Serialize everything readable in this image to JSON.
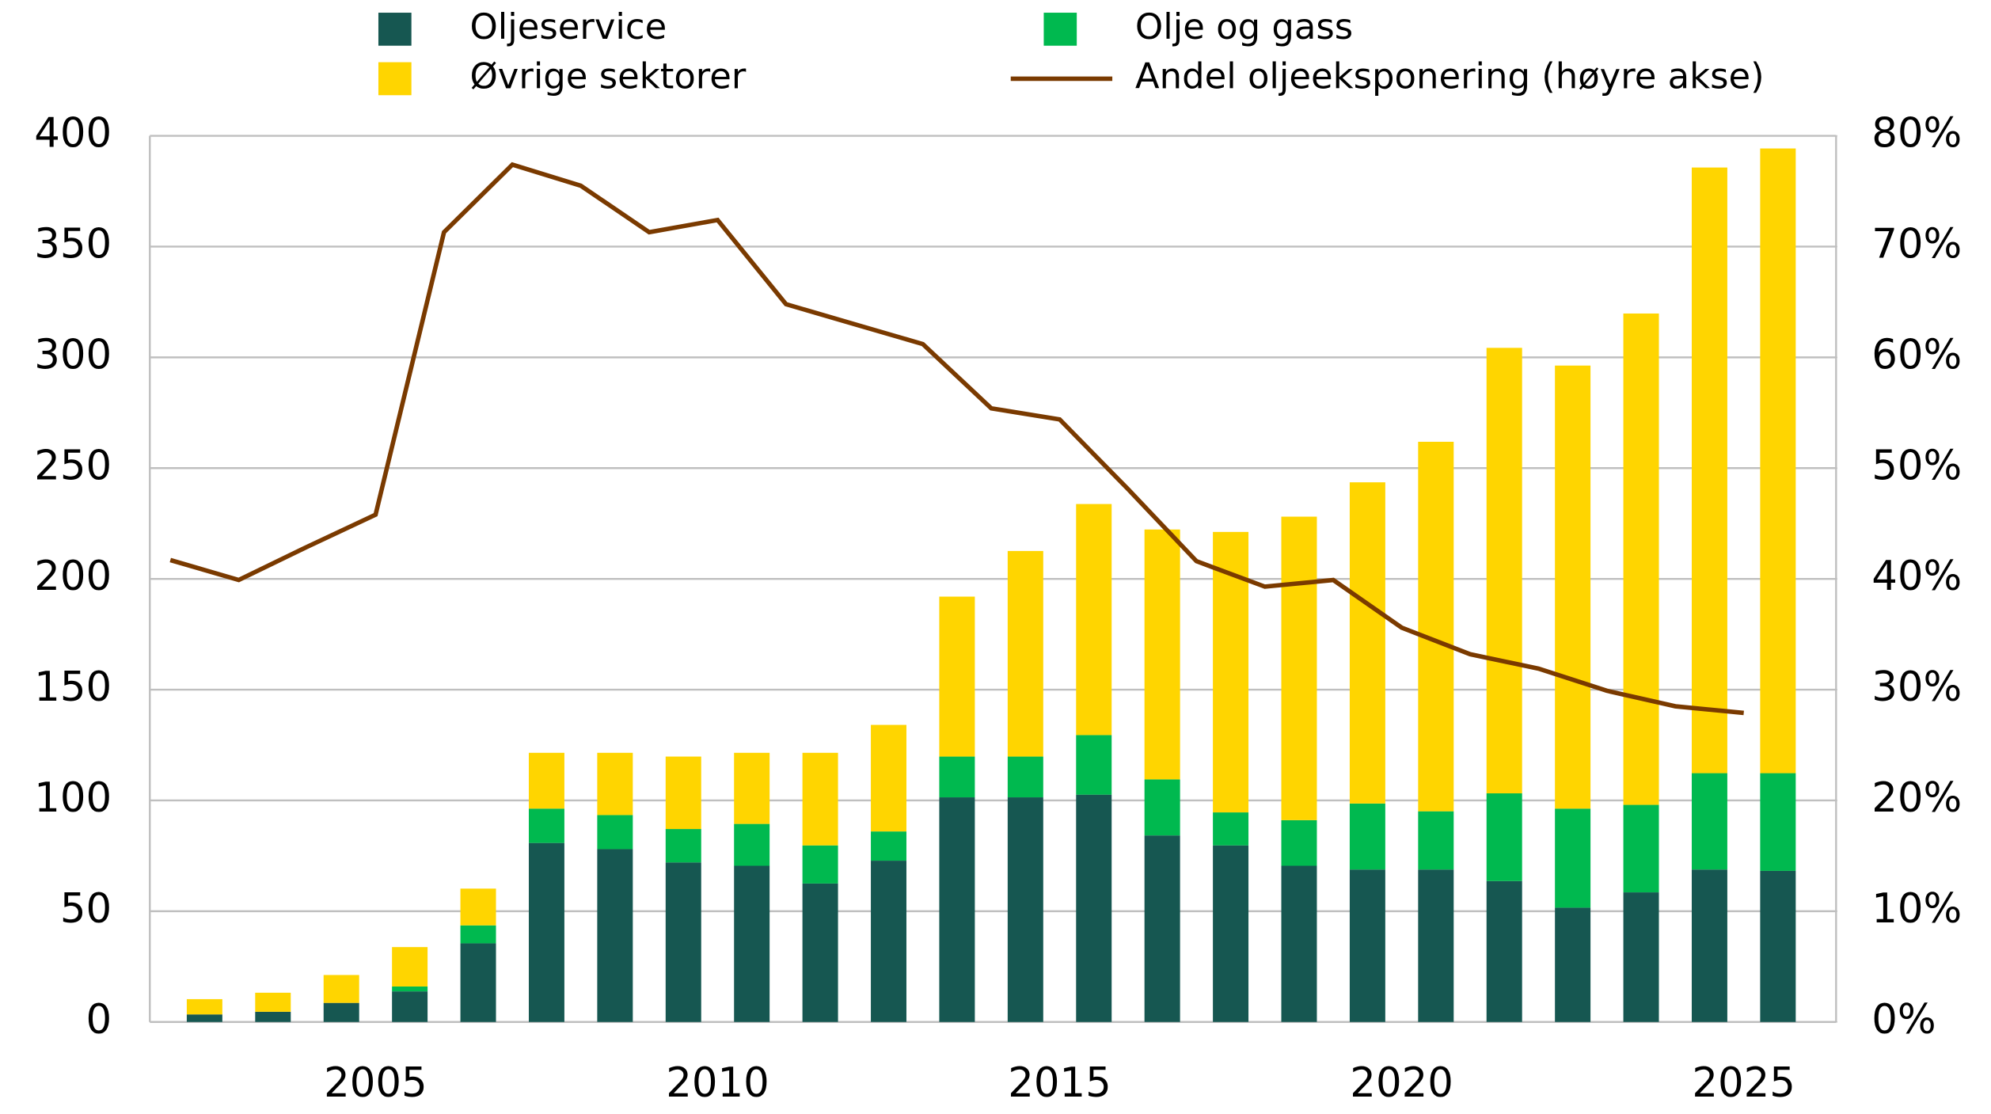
{
  "chart_data": {
    "type": "bar",
    "x": [
      2002,
      2003,
      2004,
      2005,
      2006,
      2007,
      2008,
      2009,
      2010,
      2011,
      2012,
      2013,
      2014,
      2015,
      2016,
      2017,
      2018,
      2019,
      2020,
      2021,
      2022,
      2023,
      2024,
      2025
    ],
    "stacked": true,
    "series": [
      {
        "name": "Oljeservice",
        "color": "#165751",
        "values": [
          3.4,
          4.6,
          8.6,
          13.8,
          35.5,
          80.8,
          78,
          72,
          70.5,
          62.5,
          72.8,
          101.4,
          101.4,
          102.6,
          84.2,
          79.7,
          70.5,
          68.8,
          68.8,
          63.6,
          51.6,
          58.5,
          68.8,
          68.2
        ]
      },
      {
        "name": "Olje og gass",
        "color": "#00b94f",
        "values": [
          0,
          0,
          0,
          2.2,
          8.1,
          15.5,
          15.4,
          15.1,
          18.9,
          17.2,
          13.2,
          18.4,
          18.4,
          26.9,
          25.3,
          14.9,
          20.6,
          29.8,
          26.3,
          39.6,
          44.7,
          39.5,
          43.5,
          44.1
        ]
      },
      {
        "name": "Øvrige sektorer",
        "color": "#ffd500",
        "values": [
          6.9,
          8.6,
          12.6,
          17.8,
          16.6,
          25.2,
          28.1,
          32.7,
          32.1,
          41.8,
          48.1,
          72.2,
          92.8,
          104.3,
          112.8,
          126.6,
          137,
          145,
          166.8,
          201.1,
          200,
          221.8,
          273.4,
          282
        ]
      },
      {
        "name": "Andel oljeeksponering (høyre akse)",
        "color": "#7a3a00",
        "type": "line",
        "axis": "y2",
        "values": [
          41.7,
          39.9,
          42.9,
          45.8,
          71.3,
          77.4,
          75.5,
          71.3,
          72.4,
          64.8,
          63,
          61.2,
          55.4,
          54.4,
          48.1,
          41.6,
          39.3,
          39.9,
          35.6,
          33.2,
          31.9,
          29.9,
          28.5,
          27.9
        ]
      }
    ],
    "xlim": [
      2001.7,
      2026.35
    ],
    "xticks": [
      2005,
      2010,
      2015,
      2020,
      2025
    ],
    "ylim": [
      0,
      400
    ],
    "yticks": [
      0,
      50,
      100,
      150,
      200,
      250,
      300,
      350,
      400
    ],
    "y2lim": [
      0,
      80
    ],
    "y2ticks": [
      {
        "value": 0,
        "label": "0%"
      },
      {
        "value": 10,
        "label": "10%"
      },
      {
        "value": 20,
        "label": "20%"
      },
      {
        "value": 30,
        "label": "30%"
      },
      {
        "value": 40,
        "label": "40%"
      },
      {
        "value": 50,
        "label": "50%"
      },
      {
        "value": 60,
        "label": "60%"
      },
      {
        "value": 70,
        "label": "70%"
      },
      {
        "value": 80,
        "label": "80%"
      }
    ],
    "grid": true
  }
}
